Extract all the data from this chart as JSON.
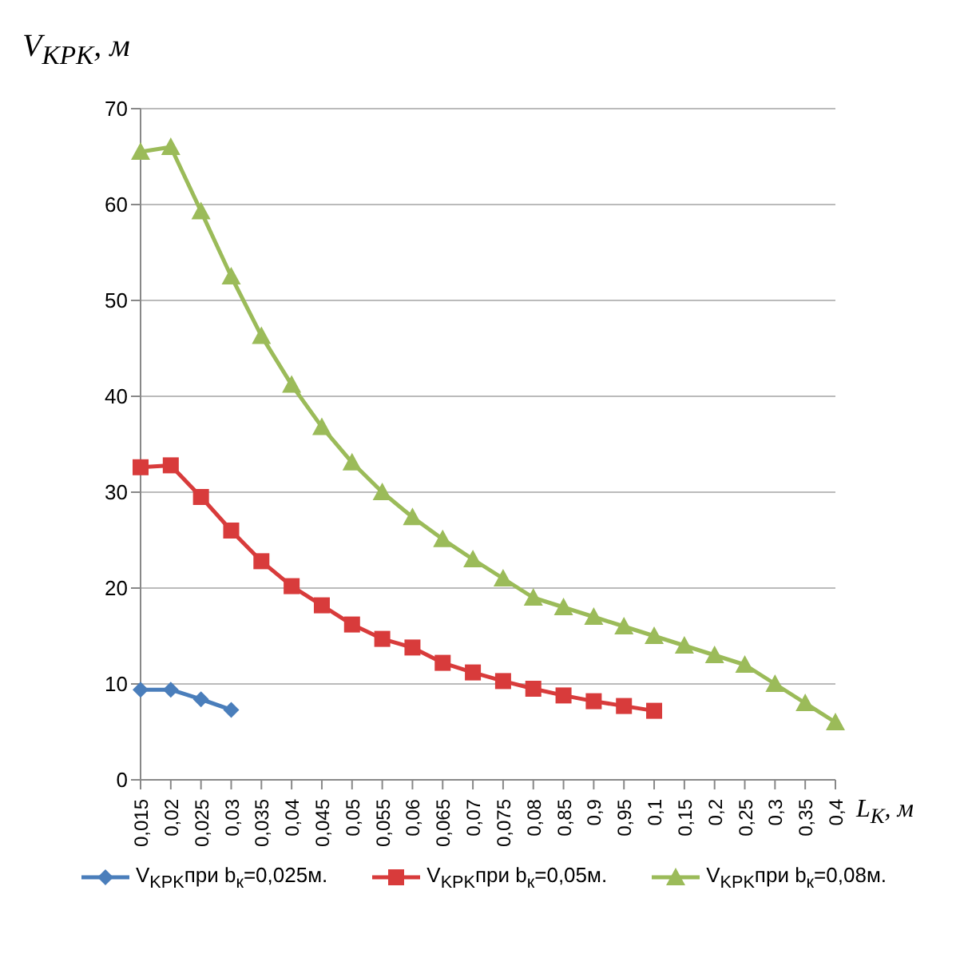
{
  "chart_data": {
    "type": "line",
    "xlabel": "L$_{К}$, м",
    "ylabel": "V$_{KPK}$, м",
    "categories": [
      "0,015",
      "0,02",
      "0,025",
      "0,03",
      "0,035",
      "0,04",
      "0,045",
      "0,05",
      "0,055",
      "0,06",
      "0,065",
      "0,07",
      "0,075",
      "0,08",
      "0,85",
      "0,9",
      "0,95",
      "0,1",
      "0,15",
      "0,2",
      "0,25",
      "0,3",
      "0,35",
      "0,4"
    ],
    "series": [
      {
        "name": "V$_{KPK}$при b$_{к}$=0,025м.",
        "color": "#4a7ebb",
        "marker": "diamond",
        "values": [
          9.4,
          9.4,
          8.4,
          7.3,
          null,
          null,
          null,
          null,
          null,
          null,
          null,
          null,
          null,
          null,
          null,
          null,
          null,
          null,
          null,
          null,
          null,
          null,
          null,
          null
        ]
      },
      {
        "name": "V$_{KPK}$при b$_{к}$=0,05м.",
        "color": "#d83b3b",
        "marker": "square",
        "values": [
          32.6,
          32.8,
          29.5,
          26,
          22.8,
          20.2,
          18.2,
          16.2,
          14.7,
          13.8,
          12.2,
          11.2,
          10.3,
          9.5,
          8.8,
          8.2,
          7.7,
          7.2,
          null,
          null,
          null,
          null,
          null,
          null
        ]
      },
      {
        "name": "V$_{KPK}$при b$_{к}$=0,08м.",
        "color": "#9bbb59",
        "marker": "triangle",
        "values": [
          65.5,
          66,
          59.3,
          52.5,
          46.3,
          41.2,
          36.8,
          33.1,
          30,
          27.4,
          25.1,
          23,
          21,
          19,
          18,
          17,
          16,
          15,
          14,
          13,
          12,
          10,
          8,
          6
        ]
      }
    ],
    "ylim": [
      0,
      70
    ],
    "yticks": [
      0,
      10,
      20,
      30,
      40,
      50,
      60,
      70
    ],
    "grid": "y",
    "legend": "bottom"
  }
}
